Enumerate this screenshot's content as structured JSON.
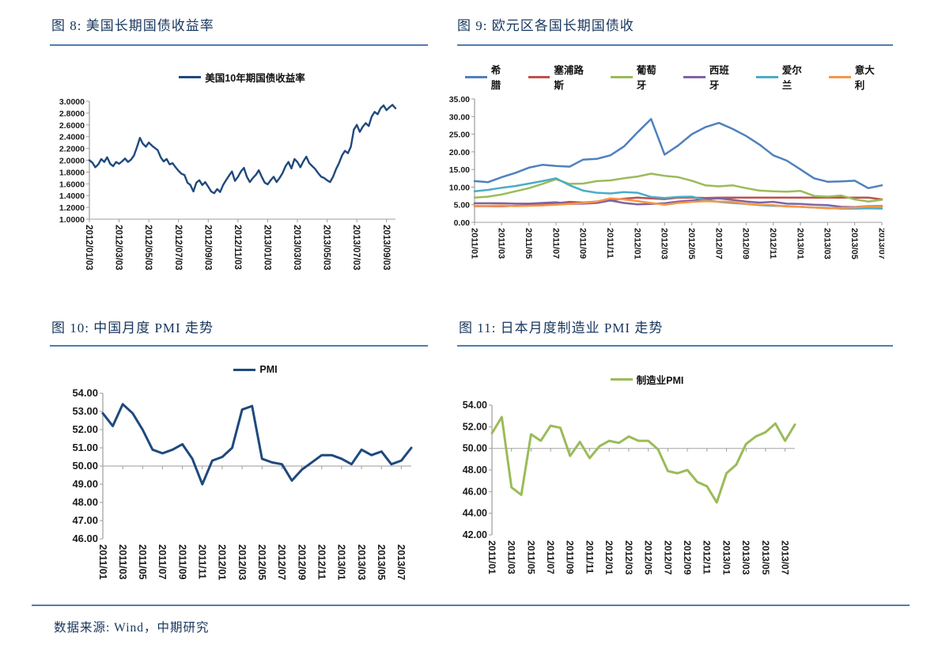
{
  "footer": {
    "source_text": "数据来源: Wind，中期研究"
  },
  "chart_data": [
    {
      "type": "line",
      "figure_title": "图 8: 美国长期国债收益率",
      "ylim": [
        1.0,
        3.0
      ],
      "ytick_step": 0.2,
      "y_decimals": 4,
      "x_axis_at": 1.0,
      "grid": false,
      "legend_position": "top",
      "x_tick_step_points": 10,
      "x_labels": [
        "2012/01/03",
        "2012/03/03",
        "2012/05/03",
        "2012/07/03",
        "2012/09/03",
        "2012/11/03",
        "2013/01/03",
        "2013/03/03",
        "2013/05/03",
        "2013/07/03",
        "2013/09/03"
      ],
      "line_width": 2.4,
      "series": [
        {
          "name": "美国10年期国债收益率",
          "color": "#1F497D",
          "values": [
            2.0,
            1.96,
            1.88,
            1.93,
            2.02,
            1.97,
            2.05,
            1.94,
            1.9,
            1.97,
            1.94,
            1.98,
            2.03,
            1.97,
            2.01,
            2.08,
            2.22,
            2.38,
            2.28,
            2.23,
            2.3,
            2.25,
            2.21,
            2.17,
            2.05,
            1.98,
            2.02,
            1.93,
            1.95,
            1.88,
            1.82,
            1.77,
            1.75,
            1.62,
            1.58,
            1.47,
            1.62,
            1.66,
            1.58,
            1.63,
            1.55,
            1.47,
            1.44,
            1.51,
            1.46,
            1.58,
            1.66,
            1.74,
            1.81,
            1.65,
            1.72,
            1.81,
            1.87,
            1.72,
            1.63,
            1.7,
            1.75,
            1.83,
            1.72,
            1.62,
            1.59,
            1.66,
            1.72,
            1.63,
            1.7,
            1.78,
            1.9,
            1.97,
            1.86,
            2.02,
            1.97,
            1.88,
            1.98,
            2.06,
            1.95,
            1.9,
            1.85,
            1.78,
            1.72,
            1.7,
            1.66,
            1.63,
            1.72,
            1.85,
            1.95,
            2.08,
            2.16,
            2.12,
            2.23,
            2.52,
            2.6,
            2.48,
            2.57,
            2.63,
            2.58,
            2.74,
            2.82,
            2.78,
            2.88,
            2.93,
            2.85,
            2.9,
            2.94,
            2.88
          ]
        }
      ]
    },
    {
      "type": "line",
      "figure_title": "图 9: 欧元区各国长期国债收",
      "ylim": [
        0,
        35
      ],
      "ytick_step": 5,
      "y_decimals": 2,
      "x_axis_at": 0,
      "grid": false,
      "legend_position": "top",
      "x_tick_step_points": 2,
      "x_labels": [
        "2011/01",
        "2011/03",
        "2011/05",
        "2011/07",
        "2011/09",
        "2011/11",
        "2012/01",
        "2012/03",
        "2012/05",
        "2012/07",
        "2012/09",
        "2012/11",
        "2013/01",
        "2013/03",
        "2013/05",
        "2013/07"
      ],
      "line_width": 2.5,
      "series": [
        {
          "name": "希腊",
          "color": "#4F81BD",
          "values": [
            11.7,
            11.4,
            12.8,
            14.0,
            15.5,
            16.3,
            16.0,
            15.8,
            17.8,
            18.0,
            19.0,
            21.5,
            25.5,
            29.3,
            19.2,
            21.8,
            25.0,
            27.0,
            28.2,
            26.5,
            24.5,
            22.0,
            19.0,
            17.5,
            15.0,
            12.5,
            11.5,
            11.6,
            11.8,
            9.7,
            10.5
          ]
        },
        {
          "name": "塞浦路斯",
          "color": "#C0504D",
          "values": [
            4.6,
            4.6,
            4.6,
            4.7,
            4.8,
            5.0,
            5.4,
            5.8,
            5.6,
            5.9,
            6.3,
            6.7,
            7.0,
            6.8,
            6.6,
            7.0,
            7.0,
            6.9,
            7.0,
            7.0,
            7.0,
            7.0,
            7.0,
            7.0,
            7.0,
            7.0,
            7.0,
            7.0,
            7.0,
            7.0,
            6.5
          ]
        },
        {
          "name": "葡萄牙",
          "color": "#9BBB59",
          "values": [
            7.0,
            7.3,
            7.9,
            8.8,
            9.7,
            10.9,
            12.2,
            10.9,
            11.0,
            11.7,
            11.9,
            12.5,
            13.0,
            13.8,
            13.2,
            12.8,
            11.8,
            10.5,
            10.2,
            10.5,
            9.7,
            9.0,
            8.8,
            8.7,
            8.9,
            7.5,
            7.3,
            7.6,
            6.5,
            5.9,
            6.4
          ]
        },
        {
          "name": "西班牙",
          "color": "#8064A2",
          "values": [
            5.4,
            5.4,
            5.4,
            5.3,
            5.3,
            5.5,
            5.7,
            5.2,
            5.3,
            5.5,
            6.2,
            5.5,
            5.1,
            5.2,
            5.4,
            5.9,
            6.2,
            6.6,
            6.8,
            6.4,
            5.9,
            5.6,
            5.8,
            5.3,
            5.2,
            5.0,
            4.9,
            4.4,
            4.3,
            4.6,
            4.6
          ]
        },
        {
          "name": "爱尔兰",
          "color": "#4BACC6",
          "values": [
            8.8,
            9.2,
            9.8,
            10.3,
            11.0,
            11.7,
            12.5,
            10.5,
            9.0,
            8.4,
            8.2,
            8.6,
            8.4,
            7.2,
            6.9,
            7.2,
            7.3,
            6.3,
            5.8,
            5.5,
            5.2,
            4.9,
            4.7,
            4.6,
            4.4,
            4.2,
            4.1,
            3.9,
            3.9,
            4.0,
            3.9
          ]
        },
        {
          "name": "意大利",
          "color": "#F79646",
          "values": [
            4.7,
            4.7,
            4.8,
            4.6,
            4.7,
            4.8,
            5.0,
            5.2,
            5.5,
            5.9,
            6.8,
            6.5,
            6.0,
            5.5,
            5.0,
            5.5,
            5.8,
            6.0,
            5.9,
            5.8,
            5.2,
            5.0,
            4.9,
            4.5,
            4.4,
            4.2,
            4.0,
            4.1,
            4.2,
            4.5,
            4.4
          ]
        }
      ]
    },
    {
      "type": "line",
      "figure_title": "图 10: 中国月度 PMI 走势",
      "ylim": [
        46,
        54
      ],
      "ytick_step": 1,
      "y_decimals": 2,
      "x_axis_at": 50,
      "grid": false,
      "legend_position": "top",
      "x_tick_step_points": 2,
      "x_labels": [
        "2011/01",
        "2011/03",
        "2011/05",
        "2011/07",
        "2011/09",
        "2011/11",
        "2012/01",
        "2012/03",
        "2012/05",
        "2012/07",
        "2012/09",
        "2012/11",
        "2013/01",
        "2013/03",
        "2013/05",
        "2013/07"
      ],
      "line_width": 3,
      "series": [
        {
          "name": "PMI",
          "color": "#1F497D",
          "values": [
            52.9,
            52.2,
            53.4,
            52.9,
            52.0,
            50.9,
            50.7,
            50.9,
            51.2,
            50.4,
            49.0,
            50.3,
            50.5,
            51.0,
            53.1,
            53.3,
            50.4,
            50.2,
            50.1,
            49.2,
            49.8,
            50.2,
            50.6,
            50.6,
            50.4,
            50.1,
            50.9,
            50.6,
            50.8,
            50.1,
            50.3,
            51.0
          ]
        }
      ]
    },
    {
      "type": "line",
      "figure_title": "图 11: 日本月度制造业 PMI 走势",
      "ylim": [
        42,
        54
      ],
      "ytick_step": 2,
      "y_decimals": 2,
      "x_axis_at": 50,
      "grid": false,
      "legend_position": "top",
      "x_tick_step_points": 2,
      "x_labels": [
        "2011/01",
        "2011/03",
        "2011/05",
        "2011/07",
        "2011/09",
        "2011/11",
        "2012/01",
        "2012/03",
        "2012/05",
        "2012/07",
        "2012/09",
        "2012/11",
        "2013/01",
        "2013/03",
        "2013/05",
        "2013/07"
      ],
      "line_width": 3,
      "series": [
        {
          "name": "制造业PMI",
          "color": "#9BBB59",
          "values": [
            51.4,
            52.9,
            46.4,
            45.7,
            51.3,
            50.7,
            52.1,
            51.9,
            49.3,
            50.6,
            49.1,
            50.2,
            50.7,
            50.5,
            51.1,
            50.7,
            50.7,
            49.9,
            47.9,
            47.7,
            48.0,
            46.9,
            46.5,
            45.0,
            47.7,
            48.5,
            50.4,
            51.1,
            51.5,
            52.3,
            50.7,
            52.2
          ]
        }
      ]
    }
  ]
}
